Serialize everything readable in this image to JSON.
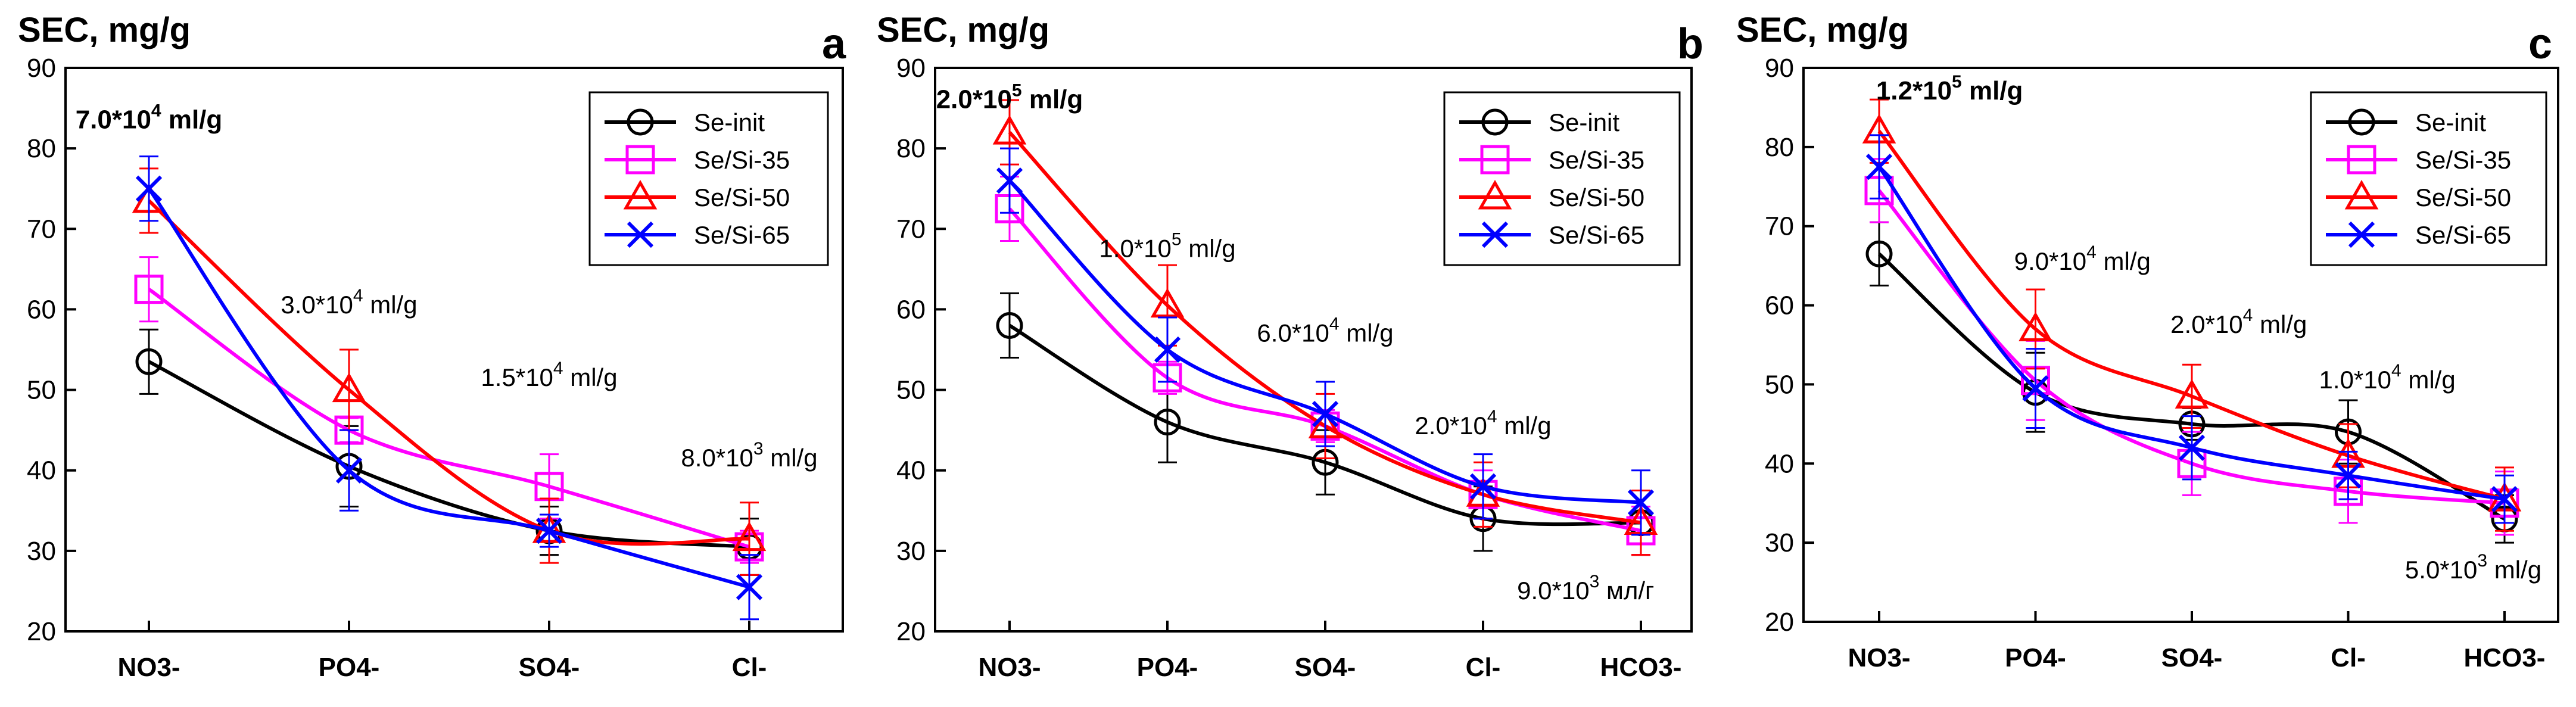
{
  "chart_data": [
    {
      "type": "line",
      "panel": "a",
      "ylabel": "SEC, mg/g",
      "ylim": [
        20,
        90
      ],
      "yticks": [
        20,
        30,
        40,
        50,
        60,
        70,
        80,
        90
      ],
      "categories": [
        "NO3-",
        "PO4-",
        "SO4-",
        "Cl-"
      ],
      "legend": "top-right",
      "series": [
        {
          "name": "Se-init",
          "color": "#000000",
          "marker": "circle",
          "values": [
            53.5,
            40.5,
            32.5,
            30.5
          ],
          "errors": [
            4,
            5,
            3,
            3.5
          ]
        },
        {
          "name": "Se/Si-35",
          "color": "#ff00ff",
          "marker": "square",
          "values": [
            62.5,
            45,
            38,
            30.5
          ],
          "errors": [
            4,
            1.5,
            4,
            2
          ]
        },
        {
          "name": "Se/Si-50",
          "color": "#ff0000",
          "marker": "triangle",
          "values": [
            73.5,
            50,
            32.5,
            31.5
          ],
          "errors": [
            4,
            5,
            4,
            4.5
          ]
        },
        {
          "name": "Se/Si-65",
          "color": "#0000ff",
          "marker": "x",
          "values": [
            75,
            40,
            32.5,
            25.5
          ],
          "errors": [
            4,
            5,
            2,
            4
          ]
        }
      ],
      "annotations": [
        {
          "cat": 0,
          "y": 82.5,
          "base": "7.0*10",
          "sup": "4",
          "unit": " ml/g",
          "bold": true
        },
        {
          "cat": 1,
          "y": 59.5,
          "base": "3.0*10",
          "sup": "4",
          "unit": " ml/g",
          "bold": false
        },
        {
          "cat": 2,
          "y": 50.5,
          "base": "1.5*10",
          "sup": "4",
          "unit": " ml/g",
          "bold": false
        },
        {
          "cat": 3,
          "y": 40.5,
          "base": "8.0*10",
          "sup": "3",
          "unit": " ml/g",
          "bold": false
        }
      ]
    },
    {
      "type": "line",
      "panel": "b",
      "ylabel": "SEC, mg/g",
      "ylim": [
        20,
        90
      ],
      "yticks": [
        20,
        30,
        40,
        50,
        60,
        70,
        80,
        90
      ],
      "categories": [
        "NO3-",
        "PO4-",
        "SO4-",
        "Cl-",
        "HCO3-"
      ],
      "legend": "top-right",
      "series": [
        {
          "name": "Se-init",
          "color": "#000000",
          "marker": "circle",
          "values": [
            58,
            46,
            41,
            34,
            33.5
          ],
          "errors": [
            4,
            5,
            4,
            4,
            4
          ]
        },
        {
          "name": "Se/Si-35",
          "color": "#ff00ff",
          "marker": "square",
          "values": [
            72.5,
            51.5,
            45.5,
            37,
            32.5
          ],
          "errors": [
            4,
            2,
            2,
            3,
            3
          ]
        },
        {
          "name": "Se/Si-50",
          "color": "#ff0000",
          "marker": "triangle",
          "values": [
            82,
            60.5,
            45.5,
            37,
            33.5
          ],
          "errors": [
            4,
            5,
            4,
            4,
            4
          ]
        },
        {
          "name": "Se/Si-65",
          "color": "#0000ff",
          "marker": "x",
          "values": [
            76,
            55,
            47,
            38,
            36
          ],
          "errors": [
            4,
            4,
            4,
            4,
            4
          ]
        }
      ],
      "annotations": [
        {
          "cat": 0,
          "y": 85,
          "base": "2.0*10",
          "sup": "5",
          "unit": " ml/g",
          "bold": true
        },
        {
          "cat": 1,
          "y": 66.5,
          "base": "1.0*10",
          "sup": "5",
          "unit": " ml/g",
          "bold": false
        },
        {
          "cat": 2,
          "y": 56,
          "base": "6.0*10",
          "sup": "4",
          "unit": " ml/g",
          "bold": false
        },
        {
          "cat": 3,
          "y": 44.5,
          "base": "2.0*10",
          "sup": "4",
          "unit": " ml/g",
          "bold": false
        },
        {
          "cat": 3.65,
          "y": 24,
          "base": "9.0*10",
          "sup": "3",
          "unit": " мл/г",
          "bold": false
        }
      ]
    },
    {
      "type": "line",
      "panel": "c",
      "ylabel": "SEC, mg/g",
      "ylim": [
        20,
        90
      ],
      "yticks": [
        20,
        30,
        40,
        50,
        60,
        70,
        80,
        90
      ],
      "categories": [
        "NO3-",
        "PO4-",
        "SO4-",
        "Cl-",
        "HCO3-"
      ],
      "legend": "top-right",
      "series": [
        {
          "name": "Se-init",
          "color": "#000000",
          "marker": "circle",
          "values": [
            66.5,
            49,
            45,
            44,
            33
          ],
          "errors": [
            4,
            5,
            2,
            4,
            3
          ]
        },
        {
          "name": "Se/Si-35",
          "color": "#ff00ff",
          "marker": "square",
          "values": [
            74.5,
            50.5,
            40,
            36.5,
            35
          ],
          "errors": [
            4,
            5,
            4,
            4,
            4
          ]
        },
        {
          "name": "Se/Si-50",
          "color": "#ff0000",
          "marker": "triangle",
          "values": [
            82,
            57,
            48.5,
            41,
            35.5
          ],
          "errors": [
            4,
            5,
            4,
            4,
            4
          ]
        },
        {
          "name": "Se/Si-65",
          "color": "#0000ff",
          "marker": "x",
          "values": [
            77.5,
            49.5,
            42,
            38.5,
            35.5
          ],
          "errors": [
            4,
            5,
            4,
            3,
            3
          ]
        }
      ],
      "annotations": [
        {
          "cat": 0.45,
          "y": 86,
          "base": "1.2*10",
          "sup": "5",
          "unit": " ml/g",
          "bold": true
        },
        {
          "cat": 1.3,
          "y": 64.5,
          "base": "9.0*10",
          "sup": "4",
          "unit": " ml/g",
          "bold": false
        },
        {
          "cat": 2.3,
          "y": 56.5,
          "base": "2.0*10",
          "sup": "4",
          "unit": " ml/g",
          "bold": false
        },
        {
          "cat": 3.25,
          "y": 49.5,
          "base": "1.0*10",
          "sup": "4",
          "unit": " ml/g",
          "bold": false
        },
        {
          "cat": 3.8,
          "y": 25.5,
          "base": "5.0*10",
          "sup": "3",
          "unit": " ml/g",
          "bold": false
        }
      ]
    }
  ]
}
